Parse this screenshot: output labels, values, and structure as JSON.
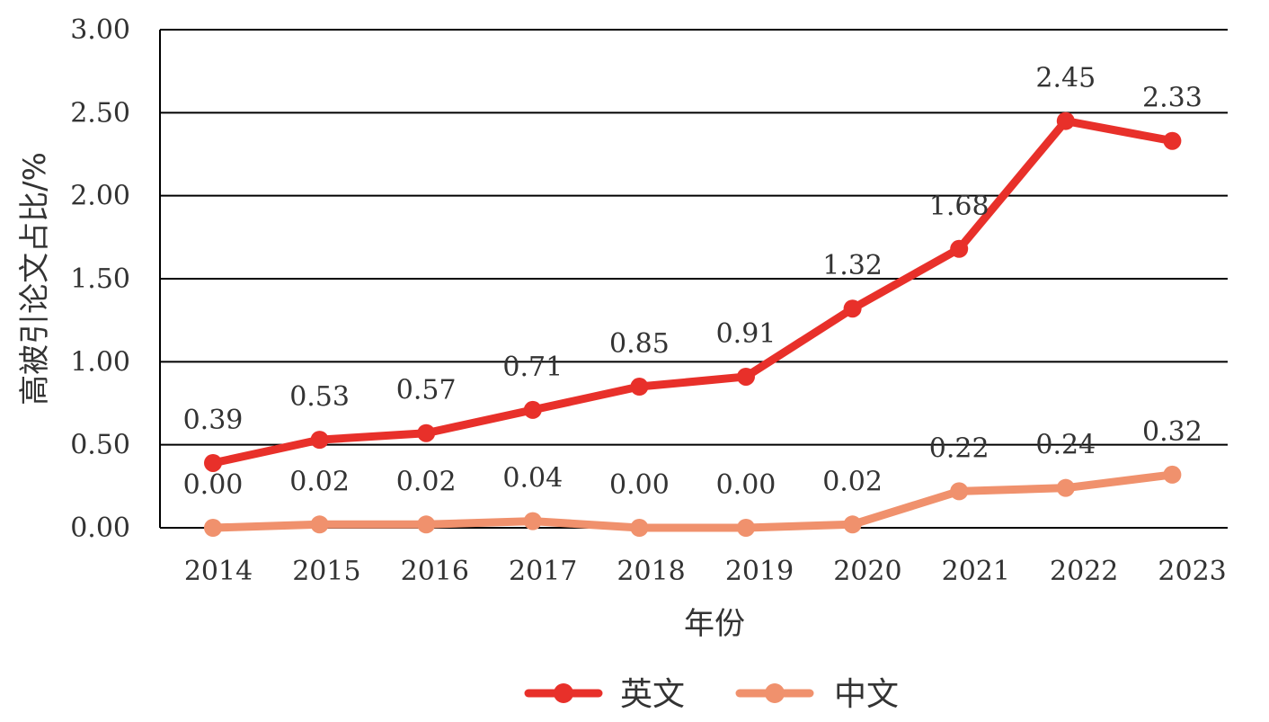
{
  "chart_data": {
    "type": "line",
    "categories": [
      "2014",
      "2015",
      "2016",
      "2017",
      "2018",
      "2019",
      "2020",
      "2021",
      "2022",
      "2023"
    ],
    "series": [
      {
        "name": "英文",
        "color": "#e8302a",
        "values": [
          0.39,
          0.53,
          0.57,
          0.71,
          0.85,
          0.91,
          1.32,
          1.68,
          2.45,
          2.33
        ],
        "labels": [
          "0.39",
          "0.53",
          "0.57",
          "0.71",
          "0.85",
          "0.91",
          "1.32",
          "1.68",
          "2.45",
          "2.33"
        ]
      },
      {
        "name": "中文",
        "color": "#f0916d",
        "values": [
          0.0,
          0.02,
          0.02,
          0.04,
          0.0,
          0.0,
          0.02,
          0.22,
          0.24,
          0.32
        ],
        "labels": [
          "0.00",
          "0.02",
          "0.02",
          "0.04",
          "0.00",
          "0.00",
          "0.02",
          "0.22",
          "0.24",
          "0.32"
        ]
      }
    ],
    "xlabel": "年份",
    "ylabel": "高被引论文占比/%",
    "ylim": [
      0,
      3
    ],
    "yticks": [
      "0.00",
      "0.50",
      "1.00",
      "1.50",
      "2.00",
      "2.50",
      "3.00"
    ],
    "grid": true,
    "legend_position": "bottom"
  }
}
